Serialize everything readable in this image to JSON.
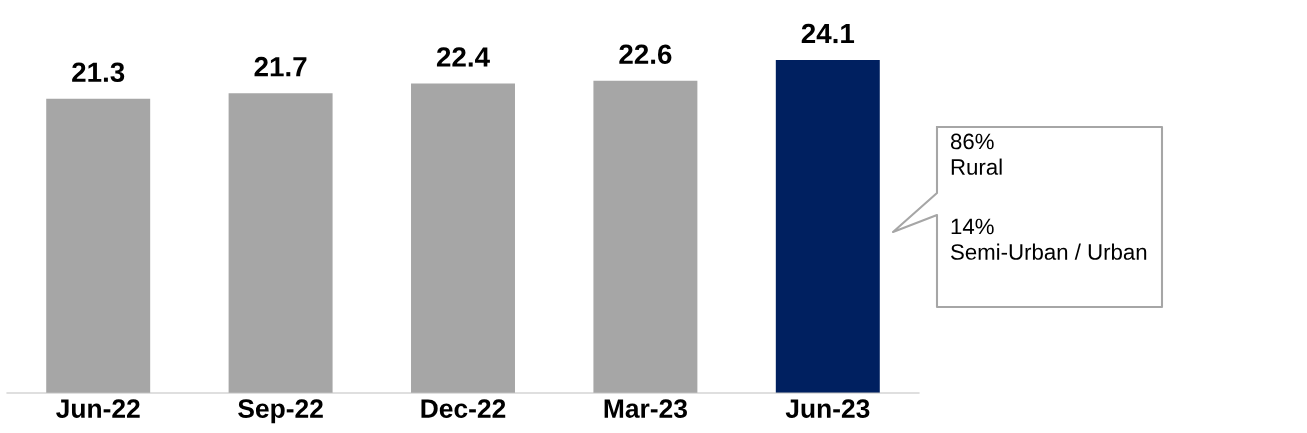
{
  "chart_data": {
    "type": "bar",
    "categories": [
      "Jun-22",
      "Sep-22",
      "Dec-22",
      "Mar-23",
      "Jun-23"
    ],
    "values": [
      21.3,
      21.7,
      22.4,
      22.6,
      24.1
    ],
    "colors": [
      "#a6a6a6",
      "#a6a6a6",
      "#a6a6a6",
      "#a6a6a6",
      "#002060"
    ],
    "data_labels": true,
    "annotations": [
      "86%\nRural",
      "14%\nSemi-Urban / Urban"
    ]
  }
}
